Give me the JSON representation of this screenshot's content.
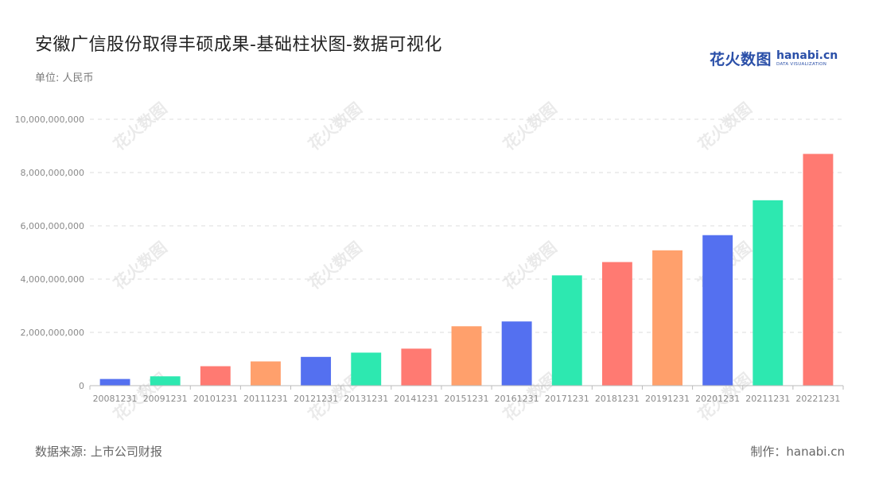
{
  "title": "安徽广信股份取得丰硕成果-基础柱状图-数据可视化",
  "unit_label": "单位: 人民币",
  "logo": {
    "cn": "花火数图",
    "en": "hanabi.cn",
    "en_sub": "DATA VISUALIZATION",
    "color": "#2a4fa8"
  },
  "watermark_text": "花火数图",
  "footer": {
    "source": "数据来源: 上市公司财报",
    "credit": "制作：hanabi.cn"
  },
  "palette": [
    "#5470f0",
    "#2de8b0",
    "#ff7a72",
    "#ffa06c"
  ],
  "chart_data": {
    "type": "bar",
    "title": "安徽广信股份取得丰硕成果-基础柱状图-数据可视化",
    "xlabel": "",
    "ylabel": "",
    "ylim": [
      0,
      10000000000
    ],
    "yticks": [
      0,
      2000000000,
      4000000000,
      6000000000,
      8000000000,
      10000000000
    ],
    "ytick_labels": [
      "0",
      "2,000,000,000",
      "4,000,000,000",
      "6,000,000,000",
      "8,000,000,000",
      "10,000,000,000"
    ],
    "grid": true,
    "legend": "none",
    "categories": [
      "20081231",
      "20091231",
      "20101231",
      "20111231",
      "20121231",
      "20131231",
      "20141231",
      "20151231",
      "20161231",
      "20171231",
      "20181231",
      "20191231",
      "20201231",
      "20211231",
      "20221231"
    ],
    "values": [
      250000000,
      350000000,
      730000000,
      910000000,
      1080000000,
      1240000000,
      1390000000,
      2230000000,
      2410000000,
      4140000000,
      4640000000,
      5080000000,
      5650000000,
      6960000000,
      8700000000
    ],
    "bar_colors": [
      "#5470f0",
      "#2de8b0",
      "#ff7a72",
      "#ffa06c",
      "#5470f0",
      "#2de8b0",
      "#ff7a72",
      "#ffa06c",
      "#5470f0",
      "#2de8b0",
      "#ff7a72",
      "#ffa06c",
      "#5470f0",
      "#2de8b0",
      "#ff7a72"
    ]
  }
}
